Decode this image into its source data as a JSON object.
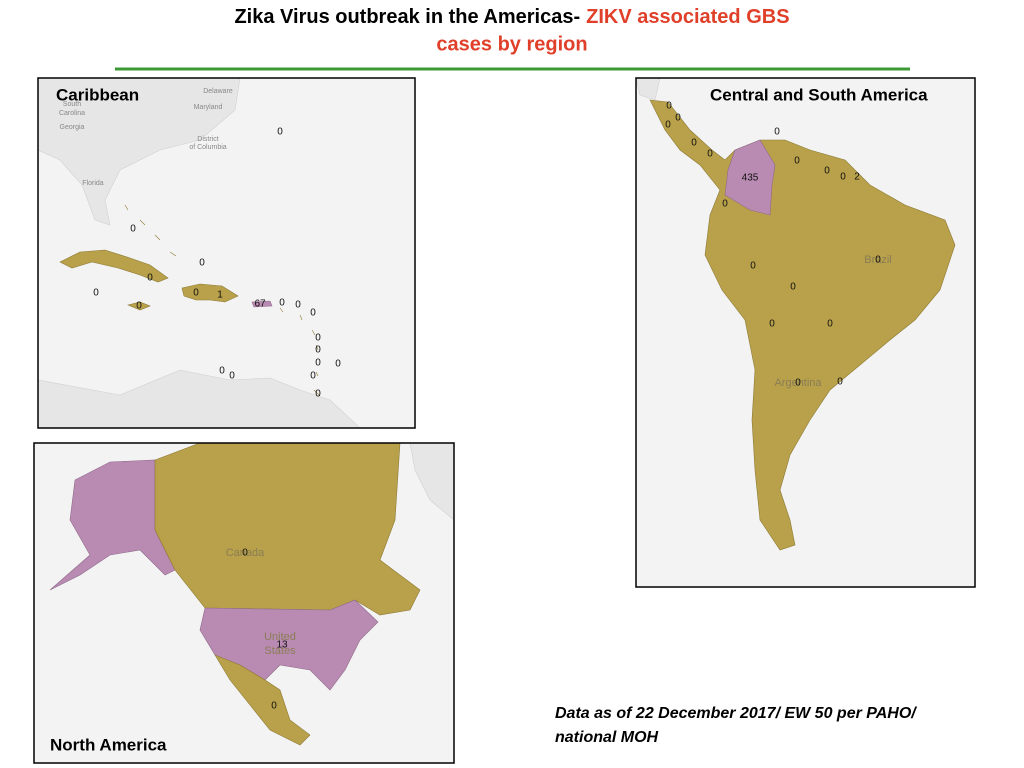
{
  "title": {
    "black": "Zika Virus outbreak in the Americas-",
    "red_line1": "ZIKV associated GBS",
    "red_line2": "cases by region"
  },
  "panels": {
    "caribbean": {
      "label": "Caribbean",
      "place_labels": [
        "Delaware",
        "Maryland",
        "District",
        "of Columbia",
        "South",
        "Carolina",
        "Georgia",
        "Florida"
      ],
      "counts": [
        0,
        0,
        0,
        0,
        0,
        0,
        0,
        1,
        67,
        0,
        0,
        0,
        0,
        0,
        0,
        0,
        0,
        0,
        0,
        0
      ]
    },
    "central_south": {
      "label": "Central and South America",
      "place_labels": [
        "Brazil",
        "Argentina"
      ],
      "counts": [
        0,
        0,
        0,
        0,
        0,
        0,
        0,
        435,
        0,
        0,
        2,
        0,
        0,
        0,
        0,
        0,
        0,
        0,
        0
      ]
    },
    "north_america": {
      "label": "North America",
      "place_labels": [
        "Canada",
        "United",
        "States"
      ],
      "counts": [
        0,
        13,
        0
      ]
    }
  },
  "footnote": [
    "Data as of 22 December 2017/ EW 50 per PAHO/",
    "national MOH"
  ]
}
